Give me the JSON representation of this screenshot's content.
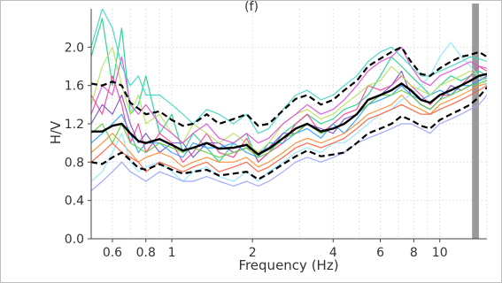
{
  "panel_label": "(f)",
  "chart_data": {
    "type": "line",
    "xlabel": "Frequency (Hz)",
    "ylabel": "H/V",
    "x_scale": "log",
    "xlim": [
      0.5,
      15
    ],
    "ylim": [
      0,
      2.4
    ],
    "x_ticks": [
      0.6,
      0.8,
      1,
      2,
      4,
      6,
      8,
      10
    ],
    "x_tick_labels": [
      "0.6",
      "0.8",
      "1",
      "2",
      "4",
      "6",
      "8",
      "10"
    ],
    "y_ticks": [
      0,
      0.4,
      0.8,
      1.2,
      1.6,
      2.0
    ],
    "y_tick_labels": [
      "0.0",
      "0.4",
      "0.8",
      "1.2",
      "1.6",
      "2.0"
    ],
    "grid": true,
    "shaded_band_x": [
      13.2,
      14.0
    ],
    "shaded_band_color": "#9a9a9a",
    "mean_curve": {
      "style": "solid",
      "color": "#000000",
      "x": [
        0.5,
        0.55,
        0.6,
        0.65,
        0.7,
        0.75,
        0.8,
        0.9,
        1.0,
        1.1,
        1.2,
        1.35,
        1.5,
        1.7,
        1.9,
        2.1,
        2.3,
        2.6,
        2.9,
        3.2,
        3.6,
        4.0,
        4.4,
        4.9,
        5.4,
        6.0,
        6.6,
        7.2,
        7.8,
        8.5,
        9.2,
        10,
        11,
        12,
        13,
        14,
        15
      ],
      "y": [
        1.12,
        1.12,
        1.18,
        1.2,
        1.1,
        1.02,
        1.0,
        1.04,
        0.98,
        0.92,
        0.95,
        1.0,
        0.94,
        0.95,
        0.98,
        0.88,
        0.94,
        1.05,
        1.15,
        1.2,
        1.12,
        1.15,
        1.2,
        1.3,
        1.45,
        1.5,
        1.55,
        1.62,
        1.55,
        1.45,
        1.42,
        1.5,
        1.55,
        1.6,
        1.65,
        1.7,
        1.72
      ]
    },
    "upper_curve": {
      "style": "dashed",
      "color": "#000000",
      "x": [
        0.5,
        0.55,
        0.6,
        0.65,
        0.7,
        0.75,
        0.8,
        0.9,
        1.0,
        1.1,
        1.2,
        1.35,
        1.5,
        1.7,
        1.9,
        2.1,
        2.3,
        2.6,
        2.9,
        3.2,
        3.6,
        4.0,
        4.4,
        4.9,
        5.4,
        6.0,
        6.6,
        7.2,
        7.8,
        8.5,
        9.2,
        10,
        11,
        12,
        13,
        14,
        15
      ],
      "y": [
        1.62,
        1.6,
        1.64,
        1.6,
        1.42,
        1.36,
        1.3,
        1.33,
        1.24,
        1.18,
        1.2,
        1.3,
        1.2,
        1.25,
        1.3,
        1.18,
        1.2,
        1.34,
        1.46,
        1.5,
        1.4,
        1.45,
        1.55,
        1.65,
        1.8,
        1.88,
        1.95,
        2.0,
        1.85,
        1.72,
        1.7,
        1.78,
        1.85,
        1.9,
        1.92,
        1.95,
        1.9
      ]
    },
    "lower_curve": {
      "style": "dashed",
      "color": "#000000",
      "x": [
        0.5,
        0.55,
        0.6,
        0.65,
        0.7,
        0.75,
        0.8,
        0.9,
        1.0,
        1.1,
        1.2,
        1.35,
        1.5,
        1.7,
        1.9,
        2.1,
        2.3,
        2.6,
        2.9,
        3.2,
        3.6,
        4.0,
        4.4,
        4.9,
        5.4,
        6.0,
        6.6,
        7.2,
        7.8,
        8.5,
        9.2,
        10,
        11,
        12,
        13,
        14,
        15
      ],
      "y": [
        0.8,
        0.78,
        0.85,
        0.9,
        0.82,
        0.74,
        0.72,
        0.78,
        0.72,
        0.68,
        0.7,
        0.72,
        0.66,
        0.68,
        0.7,
        0.62,
        0.68,
        0.78,
        0.86,
        0.92,
        0.86,
        0.88,
        0.9,
        1.0,
        1.1,
        1.15,
        1.2,
        1.28,
        1.24,
        1.18,
        1.15,
        1.24,
        1.3,
        1.35,
        1.4,
        1.48,
        1.58
      ]
    },
    "individual_curves": [
      {
        "color": "#1ecf8a",
        "y": [
          1.9,
          2.3,
          1.6,
          2.2,
          1.3,
          1.4,
          1.7,
          1.1,
          1.3,
          0.9,
          1.1,
          0.95,
          0.8,
          1.0,
          1.1,
          0.8,
          0.9,
          1.1,
          1.2,
          1.3,
          1.2,
          1.25,
          1.35,
          1.4,
          1.5,
          1.7,
          1.9,
          1.8,
          1.7,
          1.6,
          1.5,
          1.6,
          1.7,
          1.65,
          1.7,
          1.75,
          1.7
        ]
      },
      {
        "color": "#ff3c8e",
        "y": [
          1.5,
          1.3,
          1.7,
          1.4,
          1.0,
          1.2,
          0.9,
          1.1,
          1.0,
          0.8,
          0.9,
          1.1,
          0.9,
          0.85,
          1.05,
          0.8,
          0.9,
          1.0,
          1.2,
          1.3,
          1.1,
          1.2,
          1.3,
          1.35,
          1.6,
          1.55,
          1.6,
          1.7,
          1.6,
          1.5,
          1.4,
          1.5,
          1.5,
          1.6,
          1.7,
          1.8,
          1.75
        ]
      },
      {
        "color": "#7a4fd0",
        "y": [
          1.2,
          1.4,
          1.3,
          1.5,
          1.2,
          1.0,
          1.1,
          0.9,
          1.0,
          1.0,
          0.85,
          1.0,
          1.0,
          0.9,
          0.95,
          0.9,
          0.95,
          1.1,
          1.1,
          1.2,
          1.15,
          1.1,
          1.25,
          1.3,
          1.4,
          1.5,
          1.6,
          1.75,
          1.5,
          1.4,
          1.35,
          1.45,
          1.6,
          1.55,
          1.6,
          1.65,
          1.7
        ]
      },
      {
        "color": "#2aa0ff",
        "y": [
          1.0,
          1.1,
          1.2,
          1.3,
          1.1,
          0.9,
          1.0,
          1.0,
          0.9,
          0.85,
          1.0,
          0.95,
          0.95,
          1.0,
          0.9,
          0.85,
          1.0,
          1.0,
          1.1,
          1.15,
          1.05,
          1.2,
          1.1,
          1.25,
          1.4,
          1.45,
          1.5,
          1.6,
          1.5,
          1.45,
          1.5,
          1.55,
          1.5,
          1.6,
          1.6,
          1.65,
          1.68
        ]
      },
      {
        "color": "#b6e35a",
        "y": [
          1.4,
          1.8,
          2.0,
          1.6,
          1.3,
          1.5,
          1.2,
          1.3,
          1.1,
          1.0,
          1.2,
          1.1,
          1.0,
          1.1,
          1.0,
          0.9,
          1.0,
          1.2,
          1.3,
          1.35,
          1.25,
          1.3,
          1.4,
          1.5,
          1.6,
          1.65,
          1.8,
          1.7,
          1.6,
          1.55,
          1.5,
          1.6,
          1.65,
          1.7,
          1.75,
          1.7,
          1.65
        ]
      },
      {
        "color": "#ff8a2a",
        "y": [
          0.9,
          1.0,
          1.1,
          1.0,
          0.9,
          0.8,
          0.85,
          0.9,
          0.85,
          0.75,
          0.8,
          0.85,
          0.8,
          0.8,
          0.85,
          0.75,
          0.8,
          0.9,
          1.0,
          1.05,
          1.0,
          1.05,
          1.1,
          1.2,
          1.3,
          1.35,
          1.4,
          1.5,
          1.4,
          1.35,
          1.3,
          1.4,
          1.45,
          1.5,
          1.55,
          1.6,
          1.62
        ]
      },
      {
        "color": "#8fe6ff",
        "y": [
          0.6,
          0.7,
          0.9,
          1.1,
          0.8,
          0.7,
          0.75,
          0.8,
          0.7,
          0.6,
          0.7,
          0.75,
          0.65,
          0.6,
          0.7,
          0.6,
          0.7,
          0.8,
          0.9,
          0.95,
          0.9,
          1.0,
          1.0,
          1.1,
          1.2,
          1.3,
          1.35,
          1.45,
          1.5,
          1.6,
          1.7,
          1.9,
          2.05,
          1.9,
          1.8,
          1.7,
          1.6
        ]
      },
      {
        "color": "#e04ad8",
        "y": [
          1.3,
          1.6,
          1.5,
          1.9,
          1.4,
          1.3,
          1.4,
          1.2,
          1.1,
          1.0,
          1.1,
          1.2,
          1.05,
          1.0,
          1.1,
          1.0,
          1.05,
          1.2,
          1.3,
          1.4,
          1.3,
          1.35,
          1.45,
          1.6,
          1.75,
          1.85,
          1.9,
          2.0,
          1.8,
          1.65,
          1.6,
          1.7,
          1.75,
          1.8,
          1.85,
          1.8,
          1.78
        ]
      },
      {
        "color": "#5fcf3a",
        "y": [
          1.1,
          1.2,
          1.0,
          1.2,
          1.0,
          0.95,
          0.9,
          1.0,
          0.95,
          0.9,
          0.95,
          0.9,
          0.85,
          0.9,
          0.95,
          0.85,
          0.9,
          1.05,
          1.1,
          1.2,
          1.1,
          1.15,
          1.2,
          1.3,
          1.4,
          1.5,
          1.5,
          1.55,
          1.5,
          1.4,
          1.35,
          1.45,
          1.5,
          1.55,
          1.6,
          1.62,
          1.65
        ]
      },
      {
        "color": "#ff5a3a",
        "y": [
          0.8,
          0.9,
          1.0,
          0.9,
          0.85,
          0.8,
          0.7,
          0.8,
          0.75,
          0.7,
          0.75,
          0.8,
          0.7,
          0.75,
          0.8,
          0.7,
          0.75,
          0.85,
          0.95,
          1.0,
          0.95,
          1.0,
          1.05,
          1.15,
          1.25,
          1.3,
          1.35,
          1.4,
          1.35,
          1.3,
          1.3,
          1.35,
          1.4,
          1.45,
          1.5,
          1.55,
          1.6
        ]
      },
      {
        "color": "#3ad6c2",
        "y": [
          2.0,
          2.4,
          2.2,
          1.8,
          1.6,
          1.7,
          1.5,
          1.5,
          1.4,
          1.3,
          1.2,
          1.35,
          1.3,
          1.2,
          1.3,
          1.1,
          1.15,
          1.35,
          1.5,
          1.55,
          1.45,
          1.5,
          1.6,
          1.7,
          1.85,
          1.95,
          2.0,
          1.9,
          1.8,
          1.7,
          1.7,
          1.75,
          1.8,
          1.85,
          1.9,
          1.88,
          1.85
        ]
      },
      {
        "color": "#9aa0ff",
        "y": [
          0.5,
          0.6,
          0.7,
          0.8,
          0.7,
          0.65,
          0.6,
          0.7,
          0.65,
          0.6,
          0.6,
          0.65,
          0.6,
          0.55,
          0.6,
          0.55,
          0.6,
          0.7,
          0.8,
          0.85,
          0.8,
          0.85,
          0.9,
          1.0,
          1.05,
          1.1,
          1.15,
          1.2,
          1.2,
          1.15,
          1.1,
          1.2,
          1.25,
          1.3,
          1.35,
          1.4,
          1.5
        ]
      }
    ]
  }
}
